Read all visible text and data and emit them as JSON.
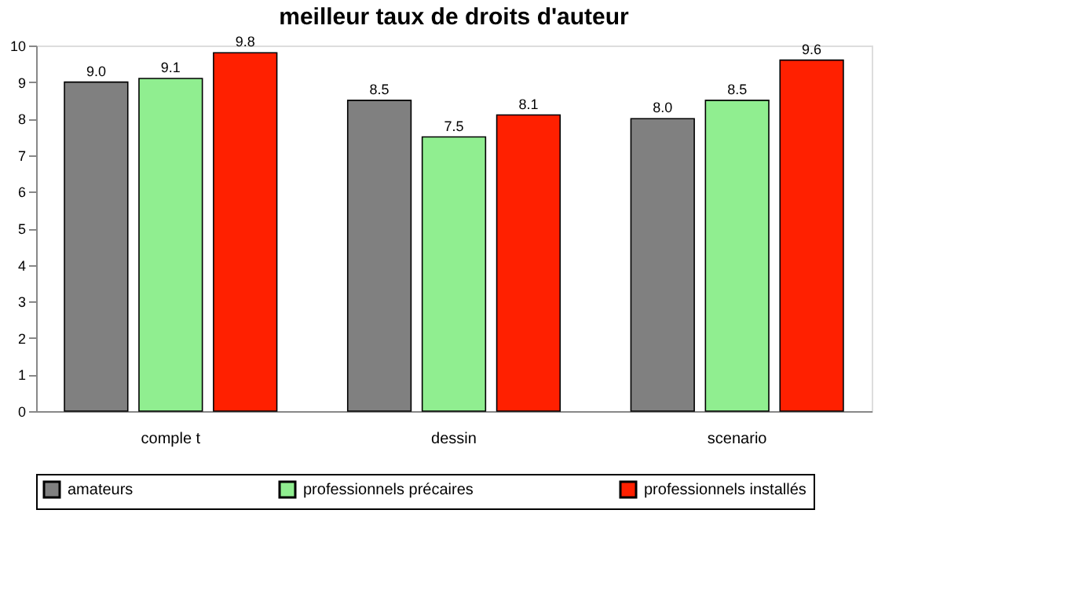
{
  "chart_data": {
    "type": "bar",
    "title": "meilleur taux de droits d'auteur",
    "categories": [
      "comple t",
      "dessin",
      "scenario"
    ],
    "series": [
      {
        "name": "amateurs",
        "color": "#808080",
        "values": [
          9.0,
          8.5,
          8.0
        ],
        "value_labels": [
          "9.0",
          "8.5",
          "8.0"
        ]
      },
      {
        "name": "professionnels précaires",
        "color": "#90ee90",
        "values": [
          9.1,
          7.5,
          8.5
        ],
        "value_labels": [
          "9.1",
          "7.5",
          "8.5"
        ]
      },
      {
        "name": "professionnels installés",
        "color": "#ff2000",
        "values": [
          9.8,
          8.1,
          9.6
        ],
        "value_labels": [
          "9.8",
          "8.1",
          "9.6"
        ]
      }
    ],
    "ylim": [
      0,
      10
    ],
    "yticks": [
      0,
      1,
      2,
      3,
      4,
      5,
      6,
      7,
      8,
      9,
      10
    ],
    "legend": "bottom",
    "grid": false
  }
}
